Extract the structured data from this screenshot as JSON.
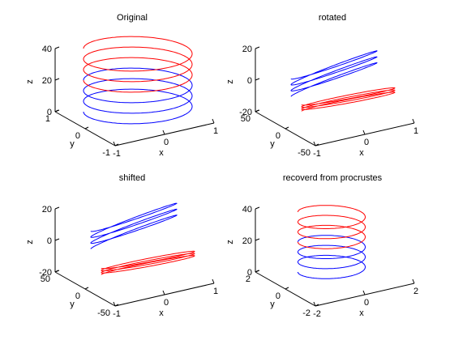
{
  "chart_data": [
    {
      "type": "line3d",
      "title": "Original",
      "xlabel": "x",
      "ylabel": "y",
      "zlabel": "z",
      "xlim": [
        -1,
        1
      ],
      "ylim": [
        -1,
        1
      ],
      "zlim": [
        0,
        40
      ],
      "x_ticks": [
        "-1",
        "0",
        "1"
      ],
      "y_ticks": [
        "-1",
        "0",
        "1"
      ],
      "z_ticks": [
        "0",
        "20",
        "40"
      ],
      "grid": false,
      "series": [
        {
          "color": "#0000ff",
          "kind": "helix",
          "radius": 1,
          "center": [
            0,
            0
          ],
          "z_start": 0,
          "z_end": 20,
          "turns": 3
        },
        {
          "color": "#ff0000",
          "kind": "helix",
          "radius": 1,
          "center": [
            0,
            0
          ],
          "z_start": 20,
          "z_end": 40,
          "turns": 3
        }
      ]
    },
    {
      "type": "line3d",
      "title": "rotated",
      "xlabel": "x",
      "ylabel": "y",
      "zlabel": "z",
      "xlim": [
        -1,
        1
      ],
      "ylim": [
        -50,
        50
      ],
      "zlim": [
        -20,
        20
      ],
      "x_ticks": [
        "-1",
        "0",
        "1"
      ],
      "y_ticks": [
        "-50",
        "0",
        "50"
      ],
      "z_ticks": [
        "-20",
        "0",
        "20"
      ],
      "grid": false,
      "series": [
        {
          "color": "#0000ff",
          "kind": "slanted-coil",
          "z_level": 5,
          "loops": 3
        },
        {
          "color": "#ff0000",
          "kind": "slanted-coil",
          "z_level": -12,
          "loops": 3
        }
      ]
    },
    {
      "type": "line3d",
      "title": "shifted",
      "xlabel": "x",
      "ylabel": "y",
      "zlabel": "z",
      "xlim": [
        -1,
        1
      ],
      "ylim": [
        -50,
        50
      ],
      "zlim": [
        -20,
        20
      ],
      "x_ticks": [
        "-1",
        "0",
        "1"
      ],
      "y_ticks": [
        "-50",
        "0",
        "50"
      ],
      "z_ticks": [
        "-20",
        "0",
        "20"
      ],
      "grid": false,
      "series": [
        {
          "color": "#0000ff",
          "kind": "slanted-coil",
          "z_level": 10,
          "loops": 3
        },
        {
          "color": "#ff0000",
          "kind": "slanted-coil",
          "z_level": -14,
          "loops": 3
        }
      ]
    },
    {
      "type": "line3d",
      "title": "recoverd from procrustes",
      "xlabel": "x",
      "ylabel": "y",
      "zlabel": "z",
      "xlim": [
        -2,
        2
      ],
      "ylim": [
        -2,
        2
      ],
      "zlim": [
        0,
        40
      ],
      "x_ticks": [
        "-2",
        "0",
        "2"
      ],
      "y_ticks": [
        "-2",
        "0",
        "2"
      ],
      "z_ticks": [
        "0",
        "20",
        "40"
      ],
      "grid": false,
      "series": [
        {
          "color": "#0000ff",
          "kind": "helix",
          "radius": 1,
          "center": [
            0,
            0
          ],
          "z_start": 0,
          "z_end": 20,
          "turns": 3
        },
        {
          "color": "#ff0000",
          "kind": "helix",
          "radius": 1,
          "center": [
            0,
            0
          ],
          "z_start": 20,
          "z_end": 40,
          "turns": 3
        }
      ]
    }
  ]
}
